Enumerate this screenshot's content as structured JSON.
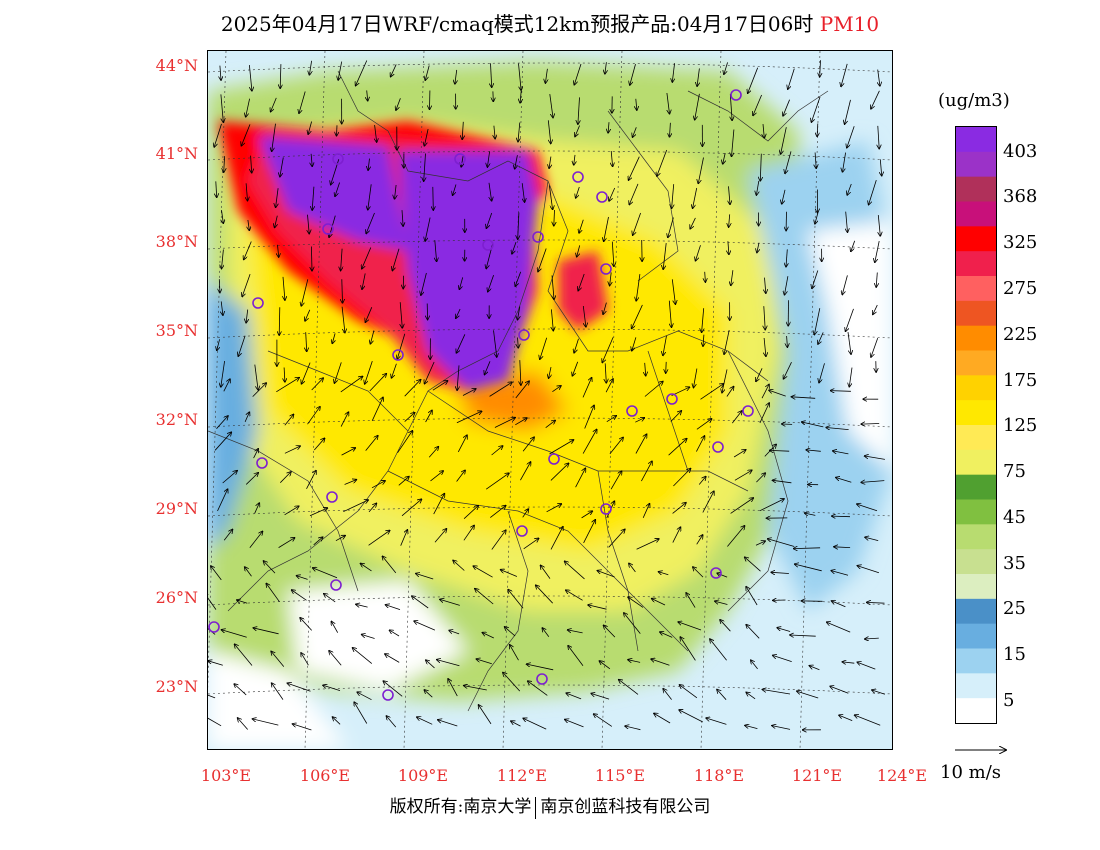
{
  "title": {
    "main": "2025年04月17日WRF/cmaq模式12km预报产品:04月17日06时",
    "pollutant": "PM10"
  },
  "lat_labels": [
    "44°N",
    "41°N",
    "38°N",
    "35°N",
    "32°N",
    "29°N",
    "26°N",
    "23°N"
  ],
  "lon_labels": [
    "103°E",
    "106°E",
    "109°E",
    "112°E",
    "115°E",
    "118°E",
    "121°E",
    "124°E"
  ],
  "colorbar": {
    "unit": "(ug/m3)",
    "labels": [
      "403",
      "368",
      "325",
      "275",
      "225",
      "175",
      "125",
      "75",
      "45",
      "35",
      "25",
      "15",
      "5"
    ],
    "colors": [
      "#8a2be2",
      "#9b32c8",
      "#b0305a",
      "#c8107a",
      "#ff0000",
      "#f0204c",
      "#ff6060",
      "#ee5522",
      "#ff8c00",
      "#ffaa22",
      "#ffd200",
      "#ffe800",
      "#ffea55",
      "#f0f060",
      "#50a030",
      "#80c040",
      "#b8dc70",
      "#c8e090",
      "#dceec0",
      "#4a90c8",
      "#68aee0",
      "#9cd2f0",
      "#d6effa",
      "#ffffff"
    ]
  },
  "wind": {
    "reference_label": "10 m/s"
  },
  "copyright": {
    "left": "版权所有:南京大学",
    "right": "南京创蓝科技有限公司"
  }
}
